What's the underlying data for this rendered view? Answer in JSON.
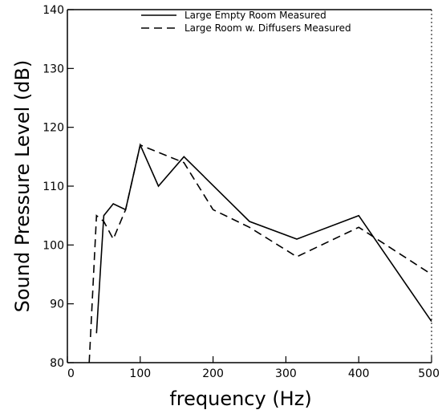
{
  "chart_data": {
    "type": "line",
    "title": "",
    "xlabel": "frequency (Hz)",
    "ylabel": "Sound Pressure Level (dB)",
    "xlim": [
      0,
      500
    ],
    "ylim": [
      80,
      140
    ],
    "x_ticks": [
      "0",
      "100",
      "200",
      "300",
      "400",
      "500"
    ],
    "y_ticks": [
      "80",
      "90",
      "100",
      "110",
      "120",
      "130",
      "140"
    ],
    "grid": false,
    "legend_position": "top-right",
    "series": [
      {
        "name": "Large Empty Room Measured",
        "style": "solid",
        "x": [
          40,
          50,
          63,
          80,
          100,
          125,
          160,
          250,
          315,
          400,
          500
        ],
        "y": [
          85,
          105,
          107,
          106,
          117,
          110,
          115,
          104,
          101,
          105,
          87
        ]
      },
      {
        "name": "Large Room w. Diffusers Measured",
        "style": "dashed",
        "x": [
          30,
          40,
          50,
          63,
          80,
          100,
          160,
          200,
          250,
          315,
          400,
          500
        ],
        "y": [
          80,
          105,
          104,
          101,
          106,
          117,
          114,
          106,
          103,
          98,
          103,
          95
        ]
      }
    ]
  }
}
